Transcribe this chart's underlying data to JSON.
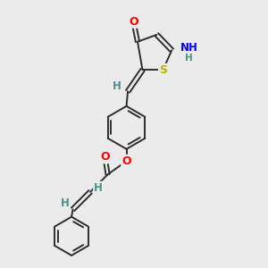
{
  "bg_color": "#ebebeb",
  "bond_color": "#2d2d2d",
  "atom_colors": {
    "O": "#ff0000",
    "N": "#0000ff",
    "S": "#b8b800",
    "H": "#4a9090",
    "C": "#2d2d2d"
  },
  "font_size": 8.5,
  "lw": 1.4
}
